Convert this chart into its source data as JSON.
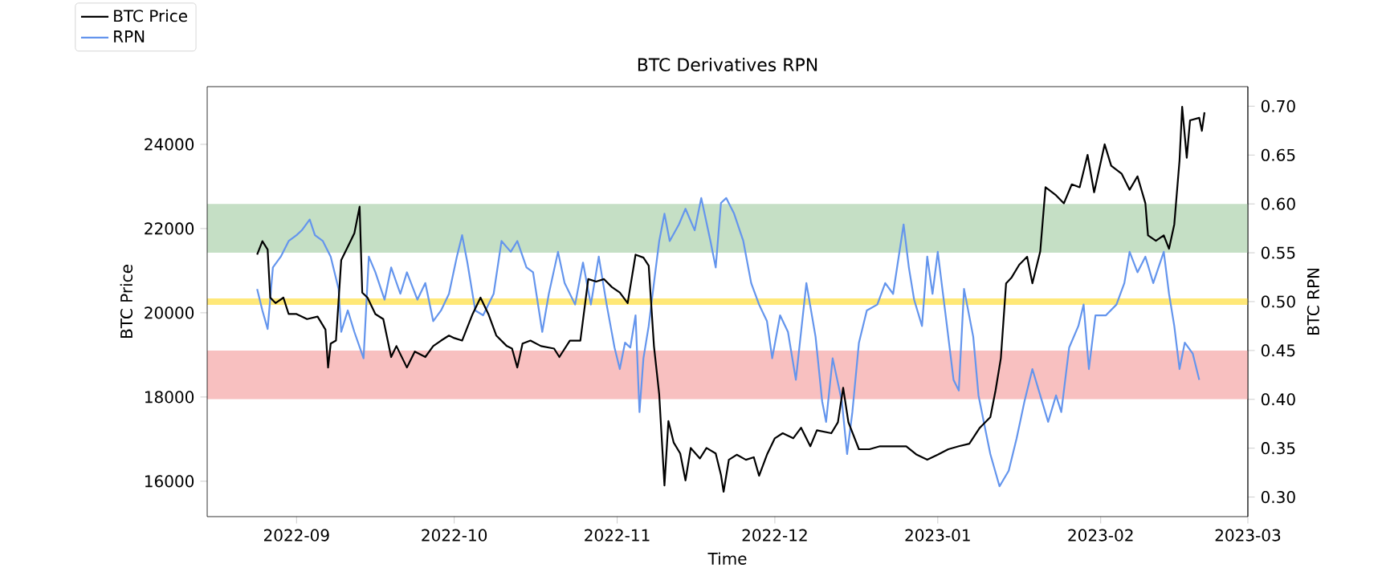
{
  "chart_data": {
    "type": "line",
    "title": "BTC Derivatives RPN",
    "xlabel": "Time",
    "ylabel": "BTC Price",
    "y2label": "BTC RPN",
    "xlim": [
      "2022-08-15",
      "2023-03-01"
    ],
    "xticks": [
      "2022-09",
      "2022-10",
      "2022-11",
      "2022-12",
      "2023-01",
      "2023-02",
      "2023-03"
    ],
    "ylim": [
      15160,
      25370
    ],
    "yticks": [
      16000,
      18000,
      20000,
      22000,
      24000
    ],
    "y2lim": [
      0.28,
      0.72
    ],
    "y2ticks": [
      {
        "value": 0.3,
        "label": "0.30"
      },
      {
        "value": 0.35,
        "label": "0.35"
      },
      {
        "value": 0.4,
        "label": "0.40"
      },
      {
        "value": 0.45,
        "label": "0.45"
      },
      {
        "value": 0.5,
        "label": "0.50"
      },
      {
        "value": 0.55,
        "label": "0.55"
      },
      {
        "value": 0.6,
        "label": "0.60"
      },
      {
        "value": 0.65,
        "label": "0.65"
      },
      {
        "value": 0.7,
        "label": "0.70"
      }
    ],
    "legend": "top left",
    "bands": [
      {
        "axis": "y2",
        "from": 0.55,
        "to": 0.6,
        "color": "#c5dfc5"
      },
      {
        "axis": "y2",
        "from": 0.4,
        "to": 0.45,
        "color": "#f8c0c0"
      }
    ],
    "ref_lines": [
      {
        "axis": "y2",
        "value": 0.5,
        "color": "#ffe878"
      }
    ],
    "series": [
      {
        "name": "BTC Price",
        "color": "#000000",
        "x": [
          "2022-08-24T12:00",
          "2022-08-25T12:00",
          "2022-08-26T12:00",
          "2022-08-27",
          "2022-08-28",
          "2022-08-29T12:00",
          "2022-08-30T12:00",
          "2022-09-01",
          "2022-09-03",
          "2022-09-05",
          "2022-09-06T12:00",
          "2022-09-07",
          "2022-09-07T12:00",
          "2022-09-08T12:00",
          "2022-09-09T12:00",
          "2022-09-11",
          "2022-09-12",
          "2022-09-13",
          "2022-09-13T12:00",
          "2022-09-14T12:00",
          "2022-09-16",
          "2022-09-17T12:00",
          "2022-09-19",
          "2022-09-20",
          "2022-09-22",
          "2022-09-23T12:00",
          "2022-09-25T12:00",
          "2022-09-27",
          "2022-09-28T12:00",
          "2022-09-30",
          "2022-10-01",
          "2022-10-02T12:00",
          "2022-10-04T12:00",
          "2022-10-06",
          "2022-10-07T12:00",
          "2022-10-09",
          "2022-10-11",
          "2022-10-12",
          "2022-10-13",
          "2022-10-14",
          "2022-10-15T12:00",
          "2022-10-17T12:00",
          "2022-10-20",
          "2022-10-21",
          "2022-10-23",
          "2022-10-25",
          "2022-10-26T12:00",
          "2022-10-28",
          "2022-10-29T12:00",
          "2022-10-31",
          "2022-11-01T12:00",
          "2022-11-03",
          "2022-11-04T12:00",
          "2022-11-06",
          "2022-11-07",
          "2022-11-08",
          "2022-11-09",
          "2022-11-10",
          "2022-11-10T18:00",
          "2022-11-11T18:00",
          "2022-11-13",
          "2022-11-14",
          "2022-11-15",
          "2022-11-16T18:00",
          "2022-11-18",
          "2022-11-19T18:00",
          "2022-11-20T18:00",
          "2022-11-21T06:00",
          "2022-11-22T06:00",
          "2022-11-23T18:00",
          "2022-11-25T12:00",
          "2022-11-27",
          "2022-11-28",
          "2022-11-29T12:00",
          "2022-12-01",
          "2022-12-02T12:00",
          "2022-12-04T12:00",
          "2022-12-06",
          "2022-12-07T18:00",
          "2022-12-09",
          "2022-12-11T18:00",
          "2022-12-13",
          "2022-12-14",
          "2022-12-15",
          "2022-12-17",
          "2022-12-19",
          "2022-12-21",
          "2022-12-23",
          "2022-12-26",
          "2022-12-28",
          "2022-12-30",
          "2023-01-01",
          "2023-01-03",
          "2023-01-05",
          "2023-01-07",
          "2023-01-09",
          "2023-01-11",
          "2023-01-12",
          "2023-01-13",
          "2023-01-14",
          "2023-01-15",
          "2023-01-16T12:00",
          "2023-01-18",
          "2023-01-19",
          "2023-01-20T12:00",
          "2023-01-21T12:00",
          "2023-01-23T12:00",
          "2023-01-25",
          "2023-01-26T12:00",
          "2023-01-28",
          "2023-01-29T12:00",
          "2023-01-30T18:00",
          "2023-02-01T18:00",
          "2023-02-03",
          "2023-02-05",
          "2023-02-06T12:00",
          "2023-02-08",
          "2023-02-09T12:00",
          "2023-02-10",
          "2023-02-11T12:00",
          "2023-02-13",
          "2023-02-14",
          "2023-02-15",
          "2023-02-16",
          "2023-02-16T12:00",
          "2023-02-17T09:00",
          "2023-02-18",
          "2023-02-19T18:00",
          "2023-02-20T06:00",
          "2023-02-20T18:00"
        ],
        "values": [
          21380,
          21700,
          21500,
          20360,
          20230,
          20360,
          19970,
          19970,
          19850,
          19910,
          19600,
          18700,
          19270,
          19340,
          21250,
          21630,
          21890,
          22520,
          20480,
          20360,
          19970,
          19850,
          18950,
          19210,
          18700,
          19080,
          18950,
          19210,
          19340,
          19460,
          19400,
          19340,
          19970,
          20360,
          19970,
          19460,
          19210,
          19150,
          18700,
          19270,
          19340,
          19210,
          19150,
          18950,
          19340,
          19340,
          20800,
          20740,
          20800,
          20610,
          20480,
          20230,
          21380,
          21310,
          21120,
          19210,
          18060,
          15900,
          17430,
          16920,
          16660,
          16020,
          16790,
          16540,
          16790,
          16660,
          16150,
          15750,
          16510,
          16630,
          16510,
          16570,
          16130,
          16630,
          17020,
          17140,
          17020,
          17270,
          16830,
          17210,
          17140,
          17400,
          18220,
          17400,
          16760,
          16760,
          16830,
          16830,
          16830,
          16630,
          16510,
          16630,
          16760,
          16830,
          16890,
          17270,
          17520,
          18160,
          18920,
          20700,
          20830,
          21140,
          21330,
          20700,
          21460,
          22980,
          22790,
          22600,
          23050,
          22980,
          23750,
          22860,
          24000,
          23490,
          23300,
          22920,
          23240,
          22600,
          21840,
          21710,
          21840,
          21520,
          22100,
          23620,
          24890,
          23680,
          24570,
          24630,
          24320,
          24760
        ]
      },
      {
        "name": "RPN",
        "color": "#6495ed",
        "axis": "y2",
        "x": [
          "2022-08-24T12:00",
          "2022-08-25T12:00",
          "2022-08-26T12:00",
          "2022-08-27T12:00",
          "2022-08-29",
          "2022-08-30T12:00",
          "2022-09-01",
          "2022-09-02",
          "2022-09-03T12:00",
          "2022-09-04T12:00",
          "2022-09-06",
          "2022-09-07T12:00",
          "2022-09-09",
          "2022-09-09T12:00",
          "2022-09-10T18:00",
          "2022-09-12",
          "2022-09-13T18:00",
          "2022-09-14T18:00",
          "2022-09-16",
          "2022-09-17T18:00",
          "2022-09-19",
          "2022-09-20T18:00",
          "2022-09-22",
          "2022-09-24",
          "2022-09-25T12:00",
          "2022-09-27",
          "2022-09-28T12:00",
          "2022-09-30",
          "2022-10-01T12:00",
          "2022-10-02T12:00",
          "2022-10-03T12:00",
          "2022-10-05",
          "2022-10-06T12:00",
          "2022-10-08T12:00",
          "2022-10-10",
          "2022-10-11T18:00",
          "2022-10-13",
          "2022-10-14T18:00",
          "2022-10-16",
          "2022-10-17T18:00",
          "2022-10-19",
          "2022-10-20T18:00",
          "2022-10-22",
          "2022-10-24",
          "2022-10-25T12:00",
          "2022-10-27",
          "2022-10-28T12:00",
          "2022-10-30",
          "2022-10-31T12:00",
          "2022-11-01T12:00",
          "2022-11-02T12:00",
          "2022-11-03T12:00",
          "2022-11-04T12:00",
          "2022-11-05T06:00",
          "2022-11-06",
          "2022-11-07",
          "2022-11-08",
          "2022-11-09",
          "2022-11-10",
          "2022-11-11",
          "2022-11-12T18:00",
          "2022-11-14",
          "2022-11-15T18:00",
          "2022-11-17",
          "2022-11-18T18:00",
          "2022-11-19T18:00",
          "2022-11-20T18:00",
          "2022-11-21T18:00",
          "2022-11-23T06:00",
          "2022-11-25",
          "2022-11-26T12:00",
          "2022-11-28",
          "2022-11-29T12:00",
          "2022-11-30T12:00",
          "2022-12-02",
          "2022-12-03T12:00",
          "2022-12-05",
          "2022-12-07",
          "2022-12-08T18:00",
          "2022-12-10",
          "2022-12-10T18:00",
          "2022-12-12",
          "2022-12-13T18:00",
          "2022-12-14T18:00",
          "2022-12-15T18:00",
          "2022-12-17",
          "2022-12-18T12:00",
          "2022-12-20T12:00",
          "2022-12-22",
          "2022-12-23T12:00",
          "2022-12-25T12:00",
          "2022-12-26T12:00",
          "2022-12-27T12:00",
          "2022-12-29",
          "2022-12-30",
          "2022-12-31",
          "2023-01-01",
          "2023-01-02T18:00",
          "2023-01-04",
          "2023-01-05",
          "2023-01-06",
          "2023-01-07T18:00",
          "2023-01-08T18:00",
          "2023-01-09T18:00",
          "2023-01-11",
          "2023-01-12T18:00",
          "2023-01-14T12:00",
          "2023-01-16",
          "2023-01-17T12:00",
          "2023-01-19",
          "2023-01-20T12:00",
          "2023-01-22",
          "2023-01-23T12:00",
          "2023-01-24T12:00",
          "2023-01-26",
          "2023-01-27T18:00",
          "2023-01-28T18:00",
          "2023-01-29T18:00",
          "2023-01-31",
          "2023-02-02",
          "2023-02-04",
          "2023-02-05T12:00",
          "2023-02-06T12:00",
          "2023-02-08",
          "2023-02-09T12:00",
          "2023-02-11",
          "2023-02-12",
          "2023-02-13",
          "2023-02-14",
          "2023-02-15",
          "2023-02-16",
          "2023-02-17",
          "2023-02-18T12:00",
          "2023-02-19T18:00"
        ],
        "values": [
          0.513,
          0.491,
          0.472,
          0.535,
          0.546,
          0.562,
          0.568,
          0.573,
          0.584,
          0.568,
          0.562,
          0.546,
          0.513,
          0.469,
          0.491,
          0.469,
          0.442,
          0.546,
          0.53,
          0.502,
          0.535,
          0.508,
          0.53,
          0.502,
          0.519,
          0.48,
          0.491,
          0.508,
          0.546,
          0.568,
          0.54,
          0.491,
          0.486,
          0.508,
          0.562,
          0.551,
          0.562,
          0.535,
          0.53,
          0.469,
          0.508,
          0.551,
          0.519,
          0.497,
          0.54,
          0.497,
          0.546,
          0.497,
          0.453,
          0.431,
          0.458,
          0.453,
          0.486,
          0.387,
          0.442,
          0.475,
          0.519,
          0.562,
          0.59,
          0.562,
          0.579,
          0.595,
          0.573,
          0.606,
          0.562,
          0.535,
          0.601,
          0.606,
          0.59,
          0.562,
          0.519,
          0.497,
          0.48,
          0.442,
          0.486,
          0.469,
          0.42,
          0.519,
          0.464,
          0.398,
          0.377,
          0.442,
          0.398,
          0.344,
          0.387,
          0.458,
          0.491,
          0.497,
          0.519,
          0.508,
          0.579,
          0.535,
          0.502,
          0.475,
          0.546,
          0.508,
          0.551,
          0.475,
          0.42,
          0.409,
          0.513,
          0.464,
          0.404,
          0.377,
          0.344,
          0.311,
          0.327,
          0.36,
          0.398,
          0.431,
          0.404,
          0.377,
          0.404,
          0.387,
          0.453,
          0.475,
          0.497,
          0.431,
          0.486,
          0.486,
          0.497,
          0.519,
          0.551,
          0.53,
          0.546,
          0.519,
          0.535,
          0.551,
          0.508,
          0.475,
          0.431,
          0.458,
          0.447,
          0.42
        ]
      }
    ]
  }
}
